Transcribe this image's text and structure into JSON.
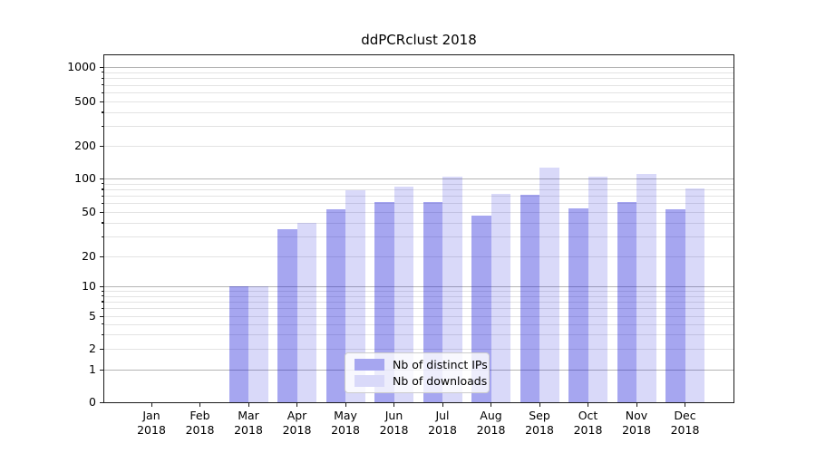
{
  "chart_data": {
    "type": "bar",
    "title": "ddPCRclust 2018",
    "categories": [
      "Jan",
      "Feb",
      "Mar",
      "Apr",
      "May",
      "Jun",
      "Jul",
      "Aug",
      "Sep",
      "Oct",
      "Nov",
      "Dec"
    ],
    "x_sublabel": "2018",
    "series": [
      {
        "name": "Nb of distinct IPs",
        "values": [
          0,
          0,
          10,
          35,
          53,
          61,
          62,
          46,
          72,
          54,
          62,
          53
        ],
        "fill": "rgba(20,20,215,0.38)",
        "legend_color": "#a6a6f0"
      },
      {
        "name": "Nb of downloads",
        "values": [
          0,
          0,
          10,
          40,
          79,
          85,
          104,
          73,
          125,
          103,
          110,
          81
        ],
        "fill": "rgba(20,20,215,0.16)",
        "legend_color": "#d9d9f9"
      }
    ],
    "yscale": "symlog",
    "yticks": [
      0,
      1,
      2,
      5,
      10,
      20,
      50,
      100,
      200,
      500,
      1000
    ],
    "minor_tick_multiples": [
      3,
      4,
      6,
      7,
      8,
      9
    ],
    "ylim": [
      0,
      1300
    ],
    "xlabel": "",
    "ylabel": "",
    "grid": "both",
    "legend_position": "lower center inside"
  },
  "colors": {
    "major_grid": "#b4b4b4",
    "minor_grid": "#e3e3e3",
    "spine": "#1a1a1a",
    "text": "#000000"
  }
}
